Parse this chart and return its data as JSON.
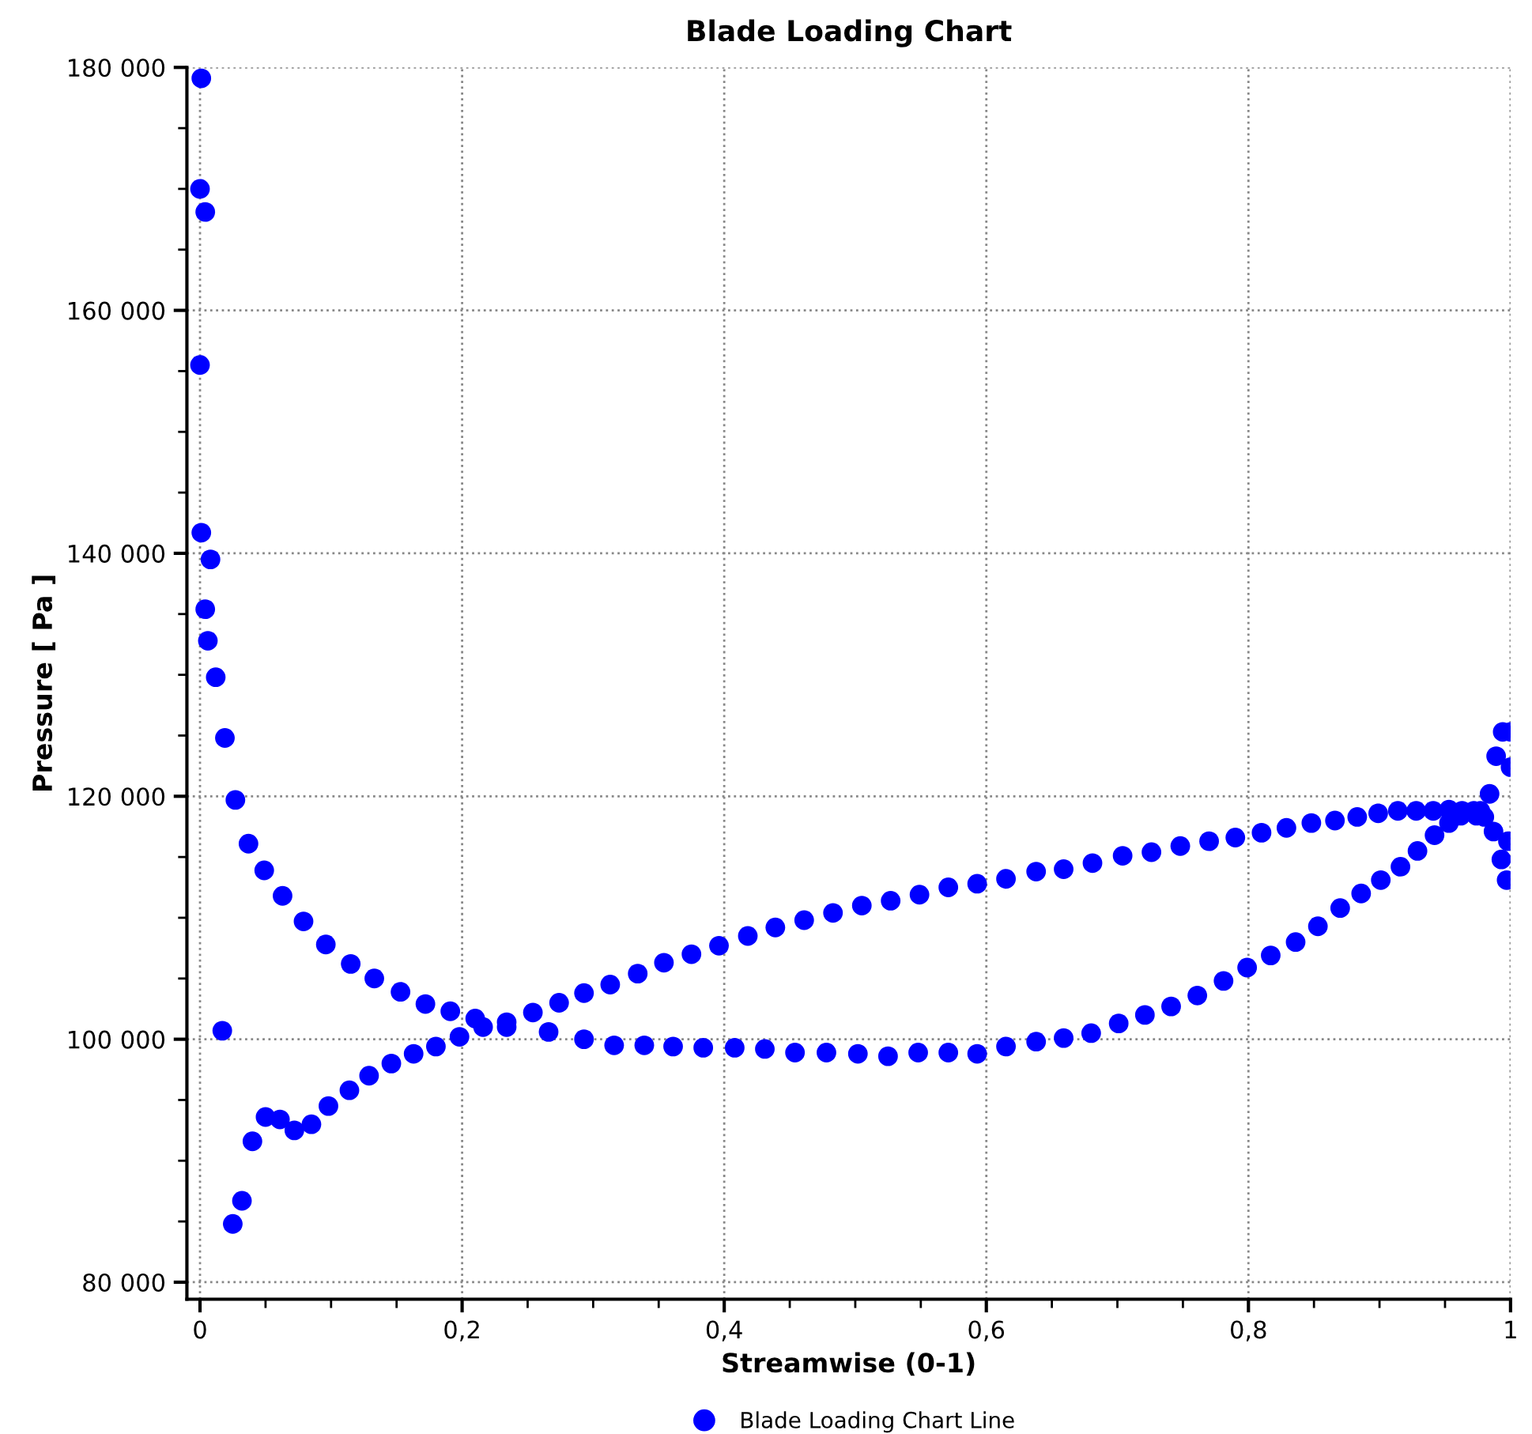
{
  "chart_data": {
    "type": "scatter",
    "title": "Blade Loading Chart",
    "xlabel": "Streamwise (0-1)",
    "ylabel": "Pressure [ Pa ]",
    "xlim": [
      -0.01,
      1.0
    ],
    "ylim": [
      78600,
      180000
    ],
    "xticks": [
      0,
      {
        "value": 0.05,
        "label": null
      },
      {
        "value": 0.1,
        "label": null
      },
      {
        "value": 0.15,
        "label": null
      },
      {
        "value": 0.2,
        "label": "0,2"
      },
      {
        "value": 0.25,
        "label": null
      },
      {
        "value": 0.3,
        "label": null
      },
      {
        "value": 0.35,
        "label": null
      },
      {
        "value": 0.4,
        "label": "0,4"
      },
      {
        "value": 0.45,
        "label": null
      },
      {
        "value": 0.5,
        "label": null
      },
      {
        "value": 0.55,
        "label": null
      },
      {
        "value": 0.6,
        "label": "0,6"
      },
      {
        "value": 0.65,
        "label": null
      },
      {
        "value": 0.7,
        "label": null
      },
      {
        "value": 0.75,
        "label": null
      },
      {
        "value": 0.8,
        "label": "0,8"
      },
      {
        "value": 0.85,
        "label": null
      },
      {
        "value": 0.9,
        "label": null
      },
      {
        "value": 0.95,
        "label": null
      },
      1
    ],
    "yticks": [
      {
        "value": 80000,
        "label": "80 000"
      },
      {
        "value": 85000,
        "label": null
      },
      {
        "value": 90000,
        "label": null
      },
      {
        "value": 95000,
        "label": null
      },
      {
        "value": 100000,
        "label": "100 000"
      },
      {
        "value": 105000,
        "label": null
      },
      {
        "value": 110000,
        "label": null
      },
      {
        "value": 115000,
        "label": null
      },
      {
        "value": 120000,
        "label": "120 000"
      },
      {
        "value": 125000,
        "label": null
      },
      {
        "value": 130000,
        "label": null
      },
      {
        "value": 135000,
        "label": null
      },
      {
        "value": 140000,
        "label": "140 000"
      },
      {
        "value": 145000,
        "label": null
      },
      {
        "value": 150000,
        "label": null
      },
      {
        "value": 155000,
        "label": null
      },
      {
        "value": 160000,
        "label": "160 000"
      },
      {
        "value": 165000,
        "label": null
      },
      {
        "value": 170000,
        "label": null
      },
      {
        "value": 175000,
        "label": null
      },
      {
        "value": 180000,
        "label": "180 000"
      }
    ],
    "grid": true,
    "legend": "bottom",
    "marker": "circle",
    "series": [
      {
        "name": "Blade Loading Chart Line",
        "color": "#0000ff",
        "x": [
          0.001,
          0,
          0.004,
          0,
          0.001,
          0.008,
          0.004,
          0.006,
          0.012,
          0.019,
          0.027,
          0.037,
          0.049,
          0.063,
          0.079,
          0.096,
          0.115,
          0.133,
          0.153,
          0.172,
          0.191,
          0.21,
          0.234,
          0.266,
          0.293,
          0.316,
          0.339,
          0.361,
          0.384,
          0.408,
          0.431,
          0.454,
          0.478,
          0.502,
          0.525,
          0.548,
          0.571,
          0.593,
          0.615,
          0.638,
          0.659,
          0.68,
          0.701,
          0.721,
          0.741,
          0.761,
          0.781,
          0.799,
          0.817,
          0.836,
          0.853,
          0.87,
          0.886,
          0.901,
          0.916,
          0.929,
          0.942,
          0.953,
          0.962,
          0.974,
          0.98,
          0.987,
          0.998,
          0.993,
          0.997,
          1.0,
          0.994,
          1.0,
          0.989,
          0.984,
          0.977,
          0.972,
          0.963,
          0.953,
          0.941,
          0.928,
          0.914,
          0.899,
          0.883,
          0.866,
          0.848,
          0.829,
          0.81,
          0.79,
          0.77,
          0.748,
          0.726,
          0.704,
          0.681,
          0.659,
          0.638,
          0.615,
          0.593,
          0.571,
          0.549,
          0.527,
          0.505,
          0.483,
          0.461,
          0.439,
          0.418,
          0.396,
          0.375,
          0.354,
          0.334,
          0.313,
          0.293,
          0.274,
          0.254,
          0.234,
          0.216,
          0.198,
          0.18,
          0.163,
          0.146,
          0.129,
          0.114,
          0.098,
          0.085,
          0.072,
          0.061,
          0.05,
          0.04,
          0.032,
          0.025,
          0.017
        ],
        "values": [
          179100,
          170000,
          168100,
          155500,
          141700,
          139500,
          135400,
          132800,
          129800,
          124800,
          119700,
          116100,
          113900,
          111800,
          109700,
          107800,
          106200,
          105000,
          103900,
          102900,
          102300,
          101700,
          101000,
          100600,
          100000,
          99500,
          99500,
          99400,
          99300,
          99300,
          99200,
          98900,
          98900,
          98800,
          98600,
          98900,
          98900,
          98800,
          99400,
          99800,
          100100,
          100500,
          101300,
          102000,
          102700,
          103600,
          104800,
          105900,
          106900,
          108000,
          109300,
          110800,
          112000,
          113100,
          114200,
          115500,
          116800,
          117800,
          118400,
          118400,
          118300,
          117100,
          116300,
          114800,
          113100,
          122400,
          125300,
          125300,
          123300,
          120200,
          118800,
          118800,
          118800,
          118900,
          118800,
          118800,
          118800,
          118600,
          118300,
          118000,
          117800,
          117400,
          117000,
          116600,
          116300,
          115900,
          115400,
          115100,
          114500,
          114000,
          113800,
          113200,
          112800,
          112500,
          111900,
          111400,
          111000,
          110400,
          109800,
          109200,
          108500,
          107700,
          107000,
          106300,
          105400,
          104500,
          103800,
          103000,
          102200,
          101400,
          101000,
          100200,
          99400,
          98800,
          98000,
          97000,
          95800,
          94500,
          93000,
          92500,
          93400,
          93600,
          91600,
          86700,
          84800,
          100700
        ]
      }
    ]
  }
}
